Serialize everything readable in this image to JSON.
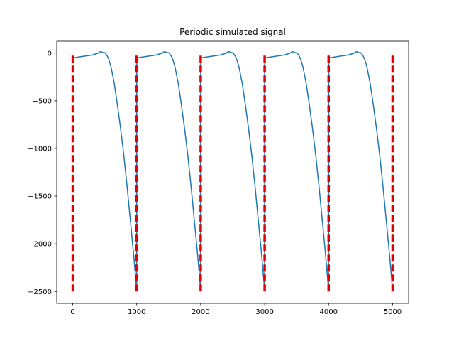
{
  "chart_data": {
    "type": "line",
    "title": "Periodic simulated signal",
    "xlabel": "",
    "ylabel": "",
    "xlim": [
      -250,
      5250
    ],
    "ylim": [
      -2625,
      125
    ],
    "grid": false,
    "legend": "none",
    "x_ticks": [
      0,
      1000,
      2000,
      3000,
      4000,
      5000
    ],
    "x_tick_labels": [
      "0",
      "1000",
      "2000",
      "3000",
      "4000",
      "5000"
    ],
    "y_ticks": [
      0,
      -500,
      -1000,
      -1500,
      -2000,
      -2500
    ],
    "y_tick_labels": [
      "0",
      "−500",
      "−1000",
      "−1500",
      "−2000",
      "−2500"
    ],
    "period": 1000,
    "signal_one_period": {
      "x": [
        0,
        100,
        200,
        300,
        350,
        400,
        420,
        440,
        460,
        480,
        500,
        520,
        540,
        560,
        580,
        600,
        650,
        700,
        750,
        800,
        850,
        900,
        950,
        999
      ],
      "y": [
        -50,
        -40,
        -30,
        -20,
        -10,
        0,
        12,
        15,
        10,
        5,
        5,
        -10,
        -30,
        -60,
        -100,
        -150,
        -320,
        -550,
        -800,
        -1080,
        -1400,
        -1750,
        -2100,
        -2480
      ]
    },
    "signal_periods": 5,
    "markers": {
      "x": [
        0,
        1000,
        2000,
        3000,
        4000,
        5000
      ],
      "y_range": [
        -2500,
        0
      ],
      "style": "dashed"
    },
    "colors": {
      "signal": "#1f77b4",
      "markers": "#e50000"
    }
  }
}
